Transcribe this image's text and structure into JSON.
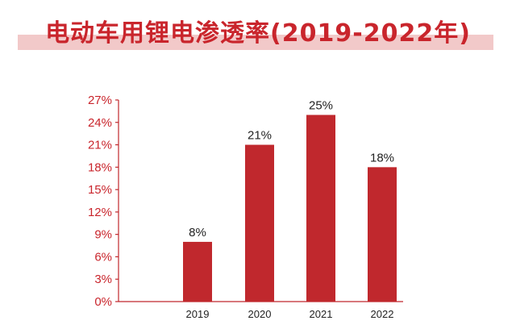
{
  "chart_data": {
    "type": "bar",
    "title": "电动车用锂电渗透率(2019-2022年)",
    "categories": [
      "2019",
      "2020",
      "2021",
      "2022"
    ],
    "values": [
      8,
      21,
      25,
      18
    ],
    "data_labels": [
      "8%",
      "21%",
      "25%",
      "18%"
    ],
    "y_tick_labels": [
      "0%",
      "3%",
      "6%",
      "9%",
      "12%",
      "15%",
      "18%",
      "21%",
      "24%",
      "27%"
    ],
    "ylim": [
      0,
      27
    ],
    "xlabel": "",
    "ylabel": "",
    "grid": false,
    "colors": {
      "bar": "#c0282d",
      "title": "#c9252c",
      "title_band": "#f2c9c9",
      "axis": "#c0282d"
    }
  }
}
